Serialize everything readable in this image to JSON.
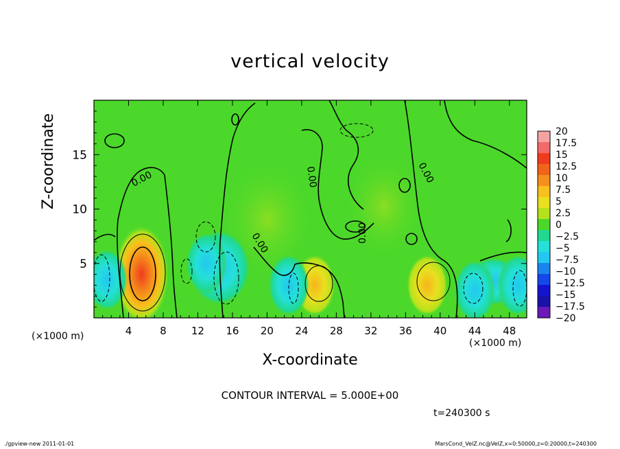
{
  "chart_data": {
    "type": "heatmap",
    "title": "vertical velocity",
    "xlabel": "X-coordinate",
    "ylabel": "Z-coordinate",
    "x_unit": "(×1000 m)",
    "y_unit": "(×1000 m)",
    "xlim": [
      0,
      50
    ],
    "ylim": [
      0,
      20
    ],
    "x_ticks": [
      4,
      8,
      12,
      16,
      20,
      24,
      28,
      32,
      36,
      40,
      44,
      48
    ],
    "y_ticks": [
      5,
      10,
      15
    ],
    "colorbar": {
      "labels": [
        "20",
        "17.5",
        "15",
        "12.5",
        "10",
        "7.5",
        "5",
        "2.5",
        "0",
        "−2.5",
        "−5",
        "−7.5",
        "−10",
        "−12.5",
        "−15",
        "−17.5",
        "−20"
      ],
      "colors": [
        "#f4a3a3",
        "#f26a6a",
        "#f03c1e",
        "#f26418",
        "#f5901c",
        "#f8c01c",
        "#e8e020",
        "#b4e21c",
        "#4bd82a",
        "#20d890",
        "#24e0d8",
        "#22c8f0",
        "#1c84ee",
        "#1448e8",
        "#1414d0",
        "#1a12a8",
        "#6a18b8"
      ]
    },
    "features": [
      {
        "type": "updraft",
        "x": 5.5,
        "z": 4.0,
        "peak": 15
      },
      {
        "type": "updraft",
        "x": 25.5,
        "z": 3.0,
        "peak": 7.5
      },
      {
        "type": "updraft",
        "x": 38.5,
        "z": 3.0,
        "peak": 7.5
      },
      {
        "type": "downdraft",
        "x": 1.5,
        "z": 3.5,
        "peak": -7.5
      },
      {
        "type": "downdraft",
        "x": 13.0,
        "z": 5.0,
        "peak": -7.5
      },
      {
        "type": "downdraft",
        "x": 22.5,
        "z": 3.0,
        "peak": -5
      },
      {
        "type": "downdraft",
        "x": 44.0,
        "z": 2.5,
        "peak": -5
      },
      {
        "type": "downdraft",
        "x": 49.0,
        "z": 3.0,
        "peak": -7.5
      }
    ],
    "contour_labels": [
      "0.00",
      "0.00",
      "0.00",
      "0.00",
      "0.00"
    ],
    "contour_interval_text": "CONTOUR INTERVAL = 5.000E+00",
    "time_text": "t=240300 s"
  },
  "footer": {
    "left": "./gpview-new  2011-01-01",
    "right": "MarsCond_VelZ.nc@VelZ,x=0:50000,z=0:20000,t=240300"
  }
}
